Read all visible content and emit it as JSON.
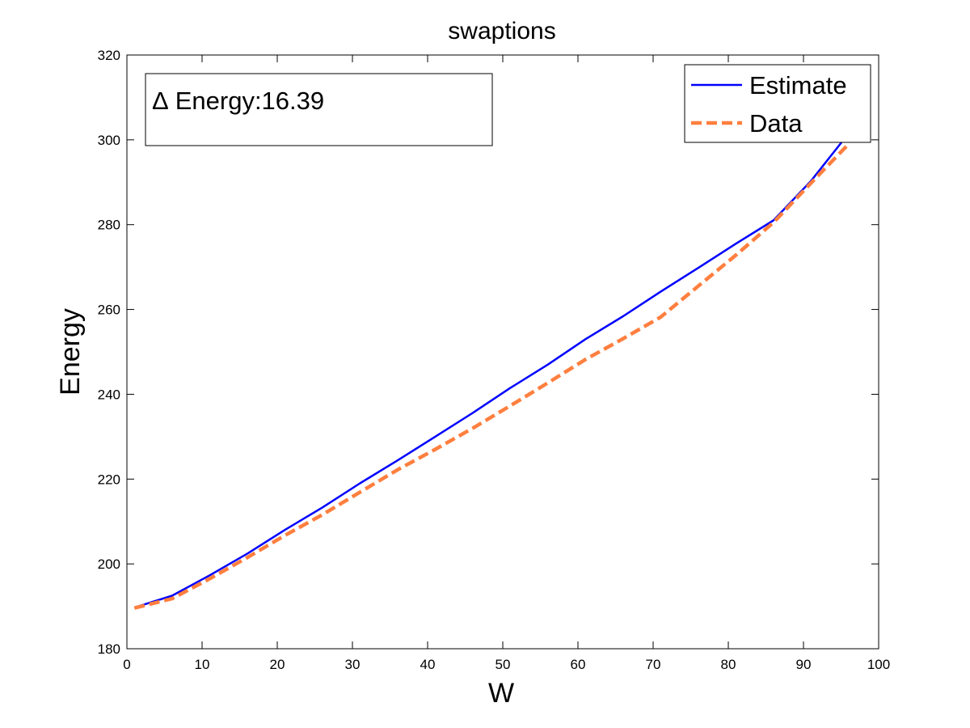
{
  "chart_data": {
    "type": "line",
    "title": "swaptions",
    "xlabel": "W",
    "ylabel": "Energy",
    "xlim": [
      0,
      100
    ],
    "ylim": [
      180,
      320
    ],
    "xticks": [
      0,
      10,
      20,
      30,
      40,
      50,
      60,
      70,
      80,
      90,
      100
    ],
    "yticks": [
      180,
      200,
      220,
      240,
      260,
      280,
      300,
      320
    ],
    "grid": false,
    "legend_position": "top-right",
    "annotation": {
      "symbol": "Δ",
      "text": "Energy:16.39"
    },
    "series": [
      {
        "name": "Estimate",
        "color": "#0000ff",
        "style": "solid",
        "x": [
          1,
          6,
          11,
          16,
          21,
          26,
          31,
          36,
          41,
          46,
          51,
          56,
          61,
          66,
          71,
          76,
          81,
          86,
          91,
          96
        ],
        "y": [
          189.7,
          192.5,
          197.3,
          202.4,
          208.0,
          213.3,
          219.0,
          224.4,
          230.0,
          235.6,
          241.5,
          247.0,
          253.0,
          258.4,
          264.2,
          269.8,
          275.5,
          281.0,
          290.3,
          301.5
        ]
      },
      {
        "name": "Data",
        "color": "#ff7f3f",
        "style": "dashed",
        "x": [
          1,
          6,
          11,
          16,
          21,
          26,
          31,
          36,
          41,
          46,
          51,
          56,
          61,
          66,
          71,
          76,
          81,
          86,
          91,
          96
        ],
        "y": [
          189.6,
          191.8,
          196.5,
          201.5,
          206.7,
          211.6,
          216.9,
          222.2,
          227.0,
          232.0,
          237.3,
          242.7,
          248.2,
          253.1,
          258.2,
          265.5,
          272.8,
          280.5,
          289.8,
          299.0
        ]
      }
    ]
  }
}
